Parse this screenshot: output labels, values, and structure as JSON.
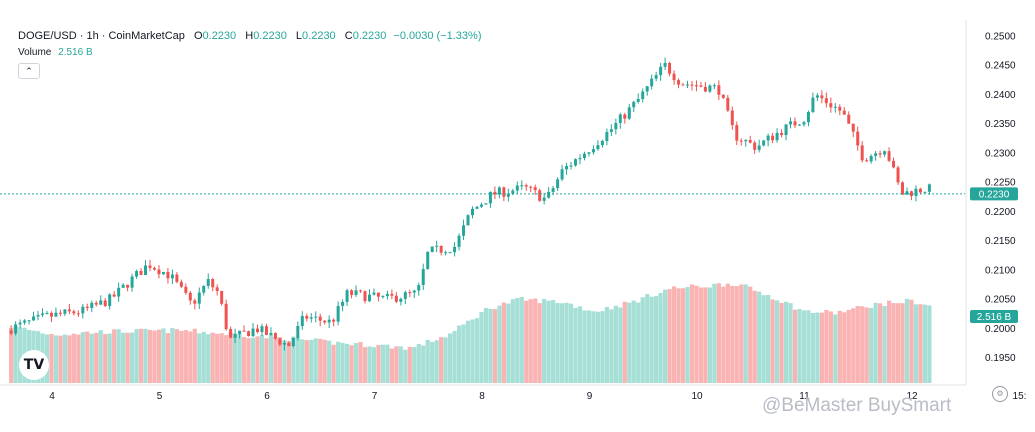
{
  "header": {
    "symbol": "DOGE/USD · 1h · CoinMarketCap",
    "open_label": "O",
    "open": "0.2230",
    "high_label": "H",
    "high": "0.2230",
    "low_label": "L",
    "low": "0.2230",
    "close_label": "C",
    "close": "0.2230",
    "change": "−0.0030 (−1.33%)"
  },
  "volume": {
    "label": "Volume",
    "value": "2.516 B"
  },
  "collapse_icon": "chevron-up-icon",
  "logo": {
    "icon": "tradingview-logo",
    "text": "TV"
  },
  "watermark": "@BeMaster BuySmart",
  "settings_icon": "gear-icon",
  "colors": {
    "up": "#26a69a",
    "down": "#ef5350",
    "vol_up": "#a6dfd6",
    "vol_down": "#f9b3b3",
    "price_line": "#26a69a"
  },
  "chart_data": {
    "type": "candlestick",
    "title": "DOGE/USD · 1h · CoinMarketCap",
    "x_axis": {
      "tick_labels": [
        "4",
        "5",
        "6",
        "7",
        "8",
        "9",
        "10",
        "11",
        "12",
        "15:"
      ]
    },
    "y_axis": {
      "side": "right",
      "range": [
        0.191,
        0.2515
      ],
      "tick_labels": [
        "0.2500",
        "0.2450",
        "0.2400",
        "0.2350",
        "0.2300",
        "0.2250",
        "0.2200",
        "0.2150",
        "0.2100",
        "0.2050",
        "0.2000",
        "0.1950"
      ]
    },
    "last_price": {
      "value": 0.223,
      "label": "0.2230"
    },
    "last_volume": {
      "label": "2.516 B"
    },
    "grid": false,
    "close_path": [
      {
        "day": 3.62,
        "close": 0.2
      },
      {
        "day": 3.95,
        "close": 0.202
      },
      {
        "day": 4.3,
        "close": 0.203
      },
      {
        "day": 4.55,
        "close": 0.205
      },
      {
        "day": 4.72,
        "close": 0.208
      },
      {
        "day": 4.9,
        "close": 0.211
      },
      {
        "day": 5.1,
        "close": 0.209
      },
      {
        "day": 5.3,
        "close": 0.204
      },
      {
        "day": 5.45,
        "close": 0.208
      },
      {
        "day": 5.55,
        "close": 0.206
      },
      {
        "day": 5.65,
        "close": 0.198
      },
      {
        "day": 5.9,
        "close": 0.2
      },
      {
        "day": 6.2,
        "close": 0.197
      },
      {
        "day": 6.35,
        "close": 0.202
      },
      {
        "day": 6.6,
        "close": 0.201
      },
      {
        "day": 6.75,
        "close": 0.206
      },
      {
        "day": 7.1,
        "close": 0.205
      },
      {
        "day": 7.4,
        "close": 0.206
      },
      {
        "day": 7.5,
        "close": 0.213
      },
      {
        "day": 7.75,
        "close": 0.214
      },
      {
        "day": 7.9,
        "close": 0.22
      },
      {
        "day": 8.1,
        "close": 0.223
      },
      {
        "day": 8.4,
        "close": 0.224
      },
      {
        "day": 8.6,
        "close": 0.222
      },
      {
        "day": 8.75,
        "close": 0.227
      },
      {
        "day": 8.95,
        "close": 0.23
      },
      {
        "day": 9.2,
        "close": 0.234
      },
      {
        "day": 9.45,
        "close": 0.239
      },
      {
        "day": 9.7,
        "close": 0.245
      },
      {
        "day": 9.85,
        "close": 0.242
      },
      {
        "day": 10.2,
        "close": 0.241
      },
      {
        "day": 10.35,
        "close": 0.233
      },
      {
        "day": 10.55,
        "close": 0.231
      },
      {
        "day": 10.8,
        "close": 0.234
      },
      {
        "day": 11.0,
        "close": 0.236
      },
      {
        "day": 11.1,
        "close": 0.24
      },
      {
        "day": 11.35,
        "close": 0.237
      },
      {
        "day": 11.55,
        "close": 0.229
      },
      {
        "day": 11.75,
        "close": 0.231
      },
      {
        "day": 11.9,
        "close": 0.223
      },
      {
        "day": 12.15,
        "close": 0.224
      },
      {
        "day": 12.2,
        "close": 0.223
      }
    ],
    "volume_profile": [
      {
        "day": 3.62,
        "rel": 0.42
      },
      {
        "day": 4.0,
        "rel": 0.36
      },
      {
        "day": 4.5,
        "rel": 0.38
      },
      {
        "day": 5.2,
        "rel": 0.39
      },
      {
        "day": 5.7,
        "rel": 0.36
      },
      {
        "day": 6.2,
        "rel": 0.33
      },
      {
        "day": 6.6,
        "rel": 0.3
      },
      {
        "day": 7.0,
        "rel": 0.28
      },
      {
        "day": 7.35,
        "rel": 0.26
      },
      {
        "day": 7.7,
        "rel": 0.36
      },
      {
        "day": 8.05,
        "rel": 0.55
      },
      {
        "day": 8.35,
        "rel": 0.62
      },
      {
        "day": 8.75,
        "rel": 0.6
      },
      {
        "day": 9.05,
        "rel": 0.53
      },
      {
        "day": 9.4,
        "rel": 0.6
      },
      {
        "day": 9.75,
        "rel": 0.7
      },
      {
        "day": 10.1,
        "rel": 0.72
      },
      {
        "day": 10.35,
        "rel": 0.74
      },
      {
        "day": 10.7,
        "rel": 0.64
      },
      {
        "day": 11.0,
        "rel": 0.53
      },
      {
        "day": 11.3,
        "rel": 0.52
      },
      {
        "day": 11.65,
        "rel": 0.58
      },
      {
        "day": 12.0,
        "rel": 0.61
      },
      {
        "day": 12.2,
        "rel": 0.56
      }
    ]
  }
}
